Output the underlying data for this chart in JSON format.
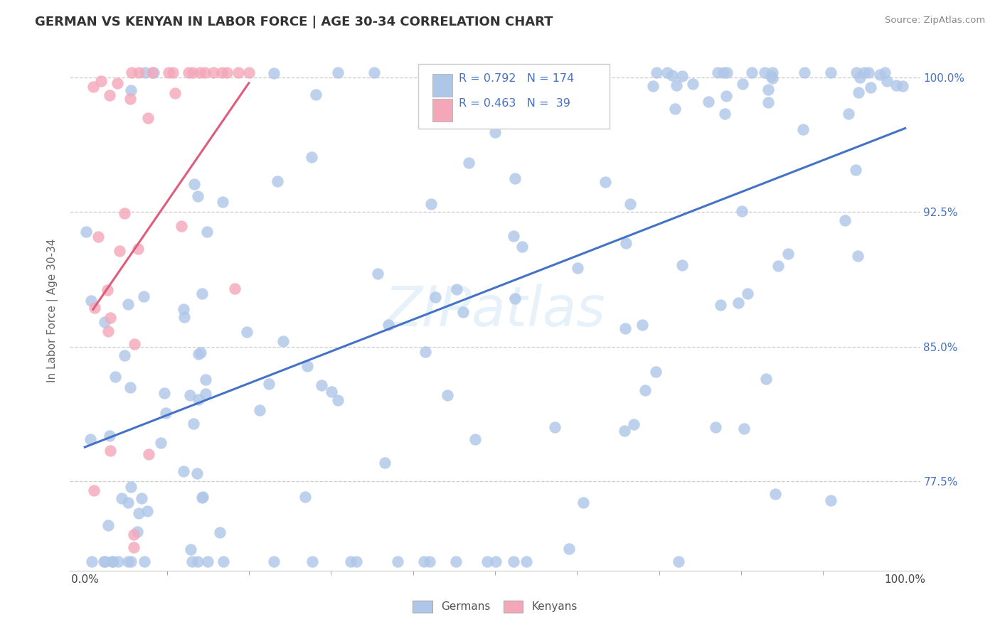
{
  "title": "GERMAN VS KENYAN IN LABOR FORCE | AGE 30-34 CORRELATION CHART",
  "source": "Source: ZipAtlas.com",
  "ylabel": "In Labor Force | Age 30-34",
  "german_color": "#aec6e8",
  "kenyan_color": "#f4a7b9",
  "german_line_color": "#4472c4",
  "kenyan_line_color": "#e05c7a",
  "german_R": 0.792,
  "german_N": 174,
  "kenyan_R": 0.463,
  "kenyan_N": 39,
  "background_color": "#ffffff",
  "watermark": "ZIPatlas",
  "ylim_low": 0.725,
  "ylim_high": 1.015,
  "ytick_vals": [
    0.775,
    0.85,
    0.925,
    1.0
  ],
  "ytick_labels": [
    "77.5%",
    "85.0%",
    "92.5%",
    "100.0%"
  ],
  "title_fontsize": 13,
  "axis_label_fontsize": 11
}
